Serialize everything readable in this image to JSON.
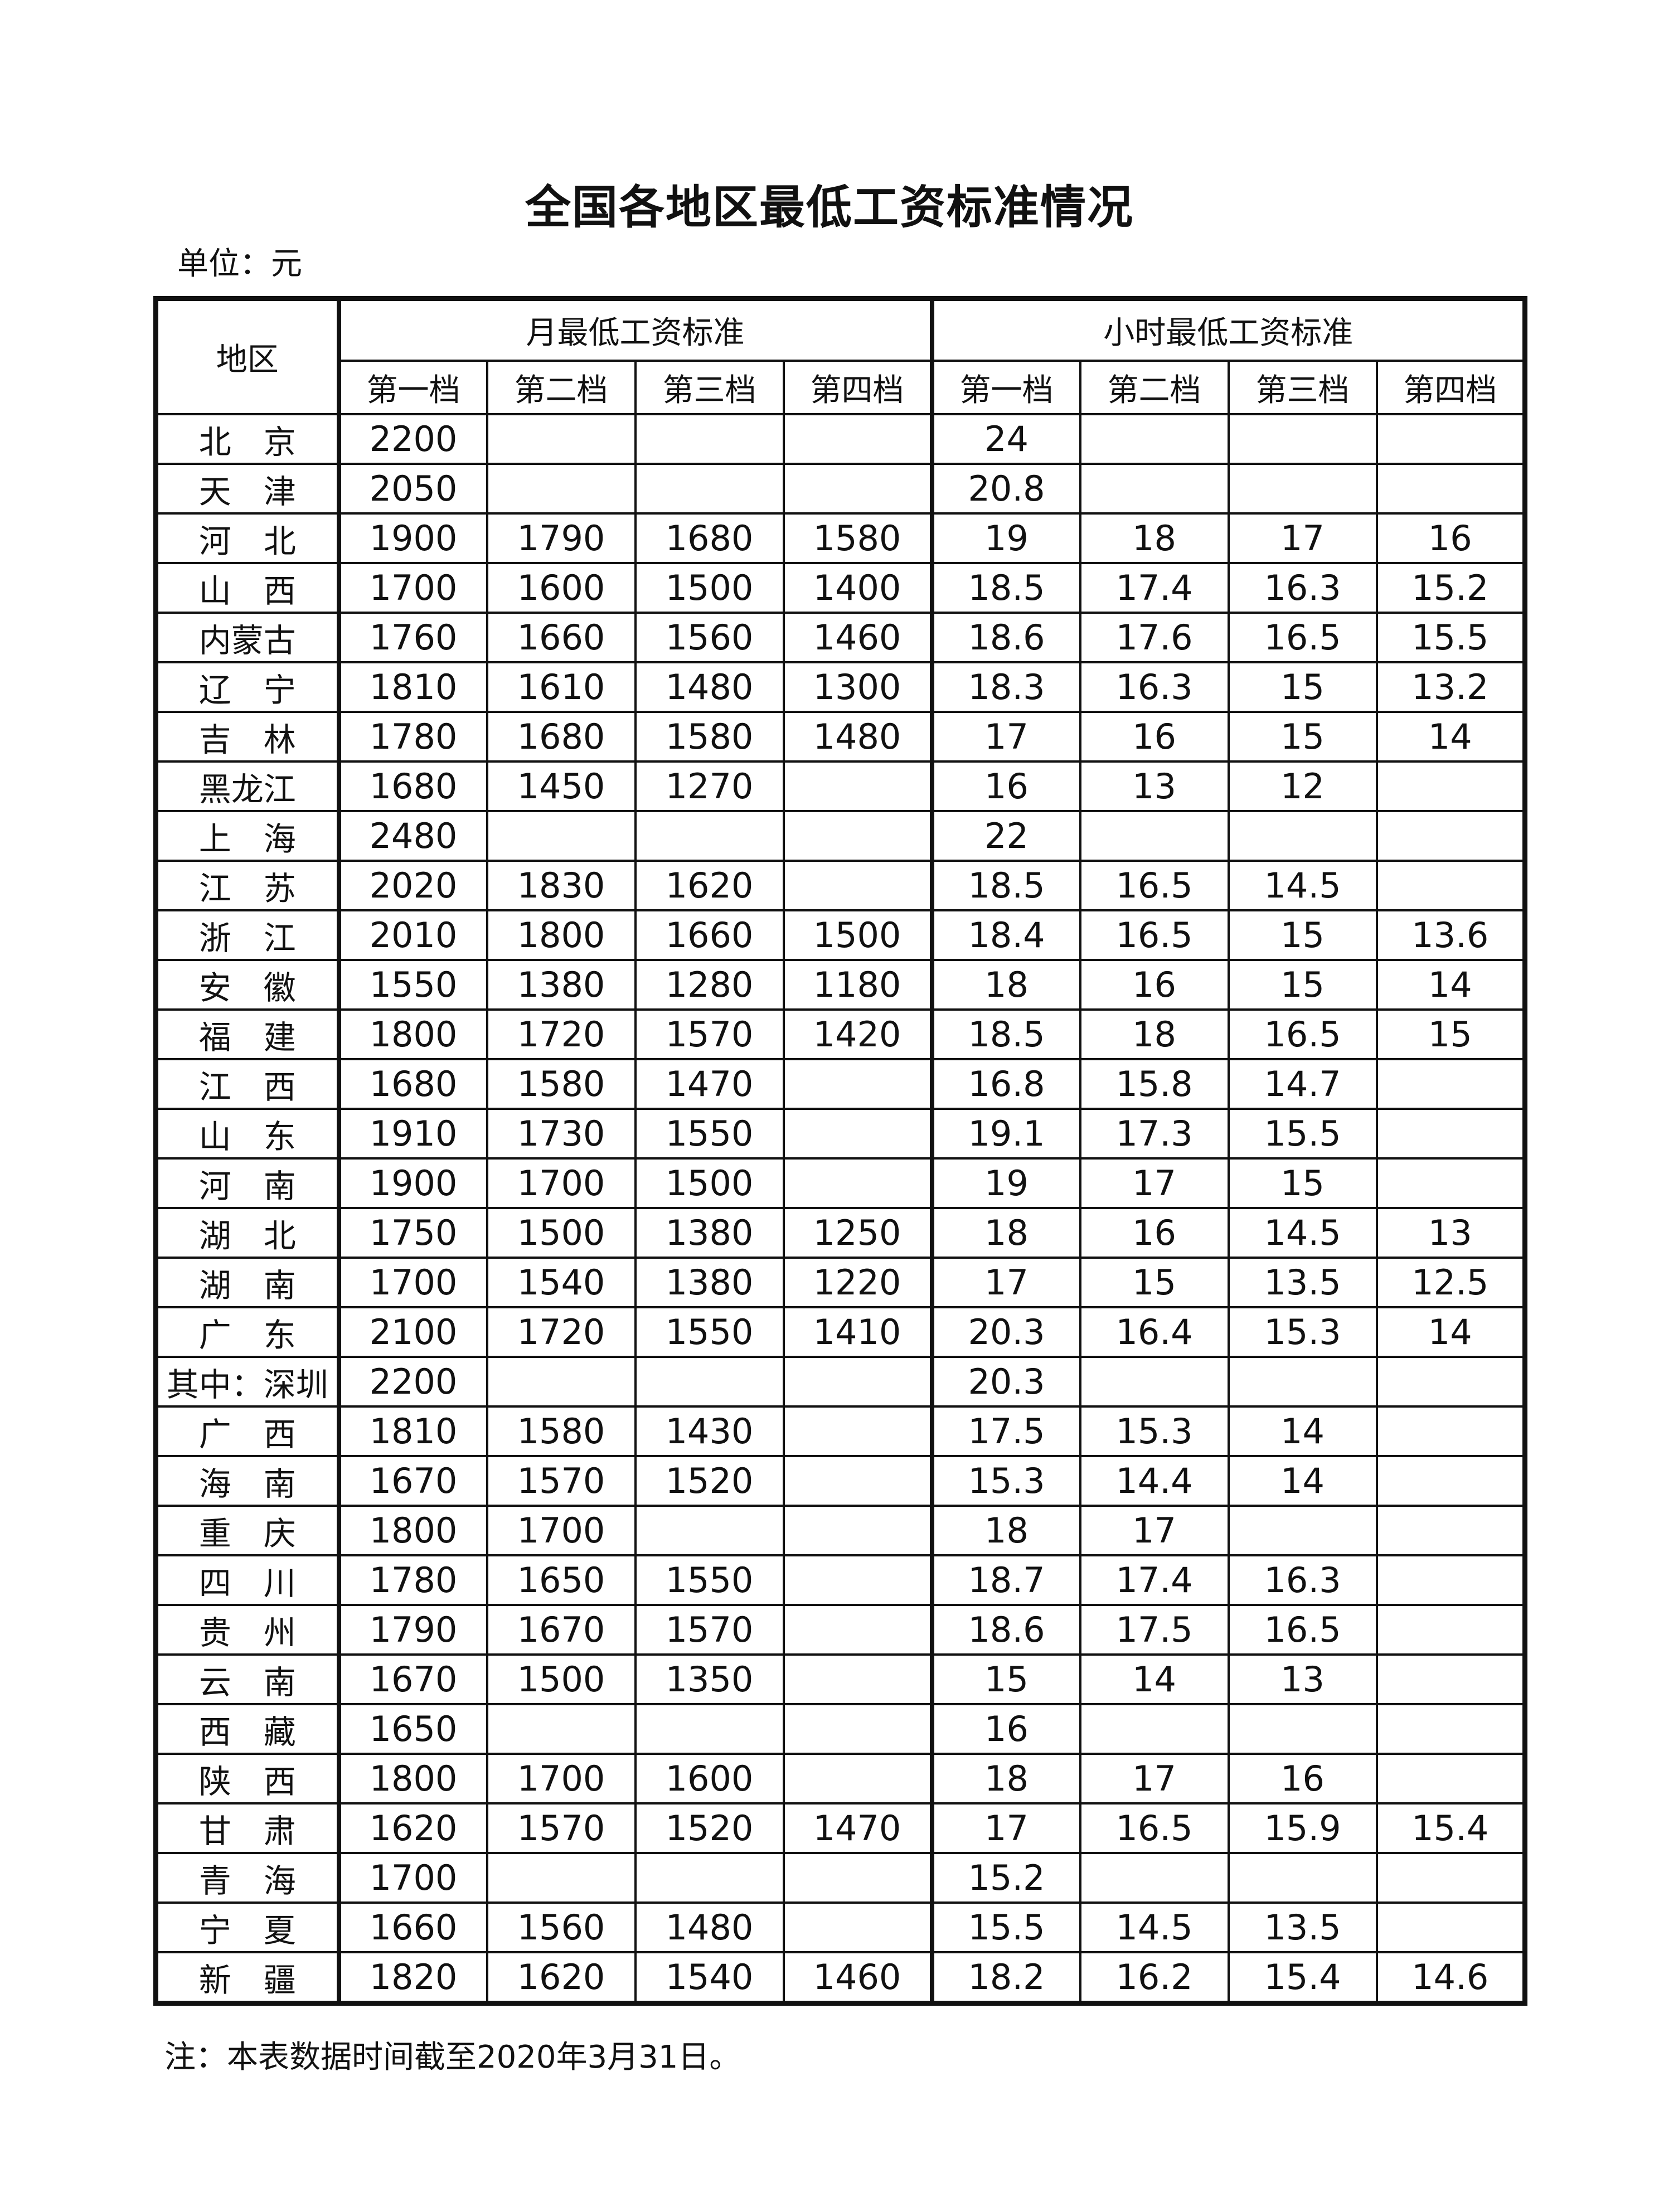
{
  "title": "全国各地区最低工资标准情况",
  "unit": "单位：元",
  "note": "注：本表数据时间截至2020年3月31日。",
  "headers": {
    "region": "地区",
    "monthly": "月最低工资标准",
    "hourly": "小时最低工资标准",
    "tiers": [
      "第一档",
      "第二档",
      "第三档",
      "第四档"
    ]
  },
  "rows": [
    {
      "region": "北　京",
      "monthly": [
        "2200",
        "",
        "",
        ""
      ],
      "hourly": [
        "24",
        "",
        "",
        ""
      ]
    },
    {
      "region": "天　津",
      "monthly": [
        "2050",
        "",
        "",
        ""
      ],
      "hourly": [
        "20.8",
        "",
        "",
        ""
      ]
    },
    {
      "region": "河　北",
      "monthly": [
        "1900",
        "1790",
        "1680",
        "1580"
      ],
      "hourly": [
        "19",
        "18",
        "17",
        "16"
      ]
    },
    {
      "region": "山　西",
      "monthly": [
        "1700",
        "1600",
        "1500",
        "1400"
      ],
      "hourly": [
        "18.5",
        "17.4",
        "16.3",
        "15.2"
      ]
    },
    {
      "region": "内蒙古",
      "monthly": [
        "1760",
        "1660",
        "1560",
        "1460"
      ],
      "hourly": [
        "18.6",
        "17.6",
        "16.5",
        "15.5"
      ]
    },
    {
      "region": "辽　宁",
      "monthly": [
        "1810",
        "1610",
        "1480",
        "1300"
      ],
      "hourly": [
        "18.3",
        "16.3",
        "15",
        "13.2"
      ]
    },
    {
      "region": "吉　林",
      "monthly": [
        "1780",
        "1680",
        "1580",
        "1480"
      ],
      "hourly": [
        "17",
        "16",
        "15",
        "14"
      ]
    },
    {
      "region": "黑龙江",
      "monthly": [
        "1680",
        "1450",
        "1270",
        ""
      ],
      "hourly": [
        "16",
        "13",
        "12",
        ""
      ]
    },
    {
      "region": "上　海",
      "monthly": [
        "2480",
        "",
        "",
        ""
      ],
      "hourly": [
        "22",
        "",
        "",
        ""
      ]
    },
    {
      "region": "江　苏",
      "monthly": [
        "2020",
        "1830",
        "1620",
        ""
      ],
      "hourly": [
        "18.5",
        "16.5",
        "14.5",
        ""
      ]
    },
    {
      "region": "浙　江",
      "monthly": [
        "2010",
        "1800",
        "1660",
        "1500"
      ],
      "hourly": [
        "18.4",
        "16.5",
        "15",
        "13.6"
      ]
    },
    {
      "region": "安　徽",
      "monthly": [
        "1550",
        "1380",
        "1280",
        "1180"
      ],
      "hourly": [
        "18",
        "16",
        "15",
        "14"
      ]
    },
    {
      "region": "福　建",
      "monthly": [
        "1800",
        "1720",
        "1570",
        "1420"
      ],
      "hourly": [
        "18.5",
        "18",
        "16.5",
        "15"
      ]
    },
    {
      "region": "江　西",
      "monthly": [
        "1680",
        "1580",
        "1470",
        ""
      ],
      "hourly": [
        "16.8",
        "15.8",
        "14.7",
        ""
      ]
    },
    {
      "region": "山　东",
      "monthly": [
        "1910",
        "1730",
        "1550",
        ""
      ],
      "hourly": [
        "19.1",
        "17.3",
        "15.5",
        ""
      ]
    },
    {
      "region": "河　南",
      "monthly": [
        "1900",
        "1700",
        "1500",
        ""
      ],
      "hourly": [
        "19",
        "17",
        "15",
        ""
      ]
    },
    {
      "region": "湖　北",
      "monthly": [
        "1750",
        "1500",
        "1380",
        "1250"
      ],
      "hourly": [
        "18",
        "16",
        "14.5",
        "13"
      ]
    },
    {
      "region": "湖　南",
      "monthly": [
        "1700",
        "1540",
        "1380",
        "1220"
      ],
      "hourly": [
        "17",
        "15",
        "13.5",
        "12.5"
      ]
    },
    {
      "region": "广　东",
      "monthly": [
        "2100",
        "1720",
        "1550",
        "1410"
      ],
      "hourly": [
        "20.3",
        "16.4",
        "15.3",
        "14"
      ]
    },
    {
      "region": "其中：深圳",
      "monthly": [
        "2200",
        "",
        "",
        ""
      ],
      "hourly": [
        "20.3",
        "",
        "",
        ""
      ]
    },
    {
      "region": "广　西",
      "monthly": [
        "1810",
        "1580",
        "1430",
        ""
      ],
      "hourly": [
        "17.5",
        "15.3",
        "14",
        ""
      ]
    },
    {
      "region": "海　南",
      "monthly": [
        "1670",
        "1570",
        "1520",
        ""
      ],
      "hourly": [
        "15.3",
        "14.4",
        "14",
        ""
      ]
    },
    {
      "region": "重　庆",
      "monthly": [
        "1800",
        "1700",
        "",
        ""
      ],
      "hourly": [
        "18",
        "17",
        "",
        ""
      ]
    },
    {
      "region": "四　川",
      "monthly": [
        "1780",
        "1650",
        "1550",
        ""
      ],
      "hourly": [
        "18.7",
        "17.4",
        "16.3",
        ""
      ]
    },
    {
      "region": "贵　州",
      "monthly": [
        "1790",
        "1670",
        "1570",
        ""
      ],
      "hourly": [
        "18.6",
        "17.5",
        "16.5",
        ""
      ]
    },
    {
      "region": "云　南",
      "monthly": [
        "1670",
        "1500",
        "1350",
        ""
      ],
      "hourly": [
        "15",
        "14",
        "13",
        ""
      ]
    },
    {
      "region": "西　藏",
      "monthly": [
        "1650",
        "",
        "",
        ""
      ],
      "hourly": [
        "16",
        "",
        "",
        ""
      ]
    },
    {
      "region": "陕　西",
      "monthly": [
        "1800",
        "1700",
        "1600",
        ""
      ],
      "hourly": [
        "18",
        "17",
        "16",
        ""
      ]
    },
    {
      "region": "甘　肃",
      "monthly": [
        "1620",
        "1570",
        "1520",
        "1470"
      ],
      "hourly": [
        "17",
        "16.5",
        "15.9",
        "15.4"
      ]
    },
    {
      "region": "青　海",
      "monthly": [
        "1700",
        "",
        "",
        ""
      ],
      "hourly": [
        "15.2",
        "",
        "",
        ""
      ]
    },
    {
      "region": "宁　夏",
      "monthly": [
        "1660",
        "1560",
        "1480",
        ""
      ],
      "hourly": [
        "15.5",
        "14.5",
        "13.5",
        ""
      ]
    },
    {
      "region": "新　疆",
      "monthly": [
        "1820",
        "1620",
        "1540",
        "1460"
      ],
      "hourly": [
        "18.2",
        "16.2",
        "15.4",
        "14.6"
      ]
    }
  ]
}
